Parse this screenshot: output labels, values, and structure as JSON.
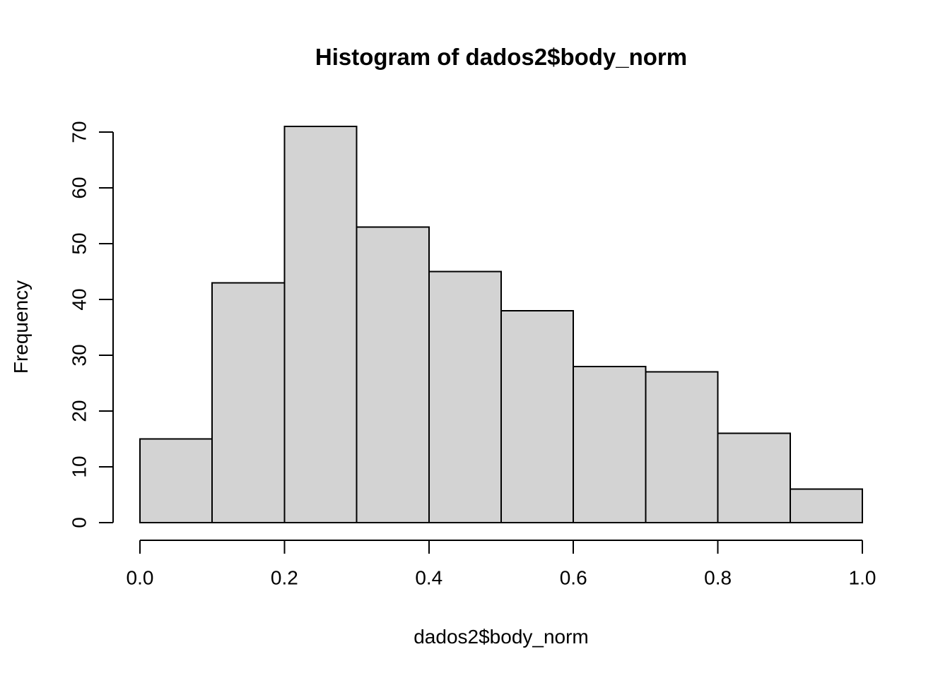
{
  "figure": {
    "background": "#ffffff",
    "foreground": "#000000"
  },
  "chart_data": {
    "type": "bar",
    "subtype": "histogram",
    "title": "Histogram of dados2$body_norm",
    "xlabel": "dados2$body_norm",
    "ylabel": "Frequency",
    "bin_edges": [
      0.0,
      0.1,
      0.2,
      0.3,
      0.4,
      0.5,
      0.6,
      0.7,
      0.8,
      0.9,
      1.0
    ],
    "categories": [
      "0.0-0.1",
      "0.1-0.2",
      "0.2-0.3",
      "0.3-0.4",
      "0.4-0.5",
      "0.5-0.6",
      "0.6-0.7",
      "0.7-0.8",
      "0.8-0.9",
      "0.9-1.0"
    ],
    "values": [
      15,
      43,
      71,
      53,
      45,
      38,
      28,
      27,
      16,
      6
    ],
    "xlim": [
      0.0,
      1.0
    ],
    "ylim": [
      0,
      70
    ],
    "x_ticks": [
      0.0,
      0.2,
      0.4,
      0.6,
      0.8,
      1.0
    ],
    "x_tick_labels": [
      "0.0",
      "0.2",
      "0.4",
      "0.6",
      "0.8",
      "1.0"
    ],
    "y_ticks": [
      0,
      10,
      20,
      30,
      40,
      50,
      60,
      70
    ],
    "y_tick_labels": [
      "0",
      "10",
      "20",
      "30",
      "40",
      "50",
      "60",
      "70"
    ],
    "grid": false,
    "legend_position": "none",
    "bar_fill_color": "#d3d3d3",
    "bar_border_color": "#000000",
    "axis_color": "#000000",
    "text_color": "#000000"
  }
}
